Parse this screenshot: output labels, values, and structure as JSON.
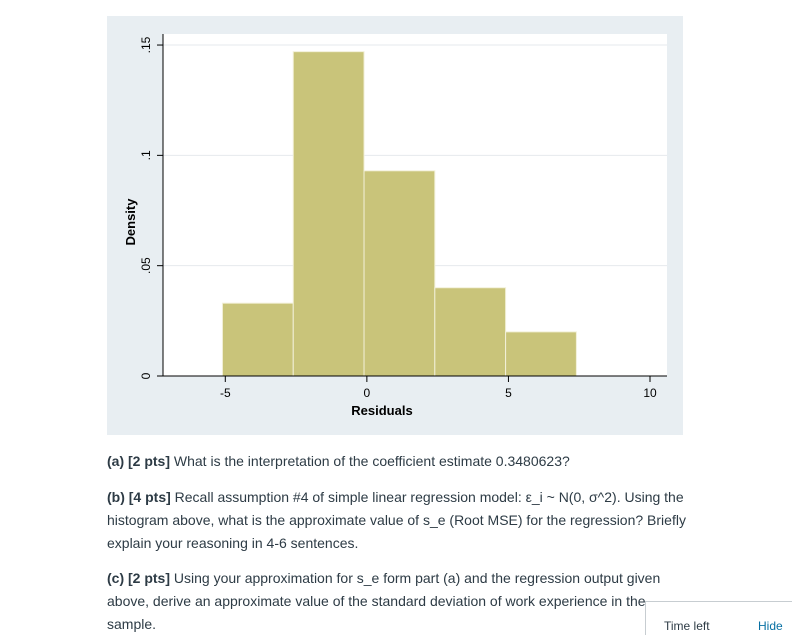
{
  "chart_data": {
    "type": "histogram",
    "xlabel": "Residuals",
    "ylabel": "Density",
    "xlim": [
      -7.2,
      10.6
    ],
    "ylim": [
      0,
      0.155
    ],
    "x_ticks": [
      -5,
      0,
      5,
      10
    ],
    "x_tick_labels": [
      "-5",
      "0",
      "5",
      "10"
    ],
    "y_ticks": [
      0,
      0.05,
      0.1,
      0.15
    ],
    "y_tick_labels": [
      "0",
      ".05",
      ".1",
      ".15"
    ],
    "grid": true,
    "bin_edges": [
      -5.1,
      -2.6,
      -0.1,
      2.4,
      4.9,
      7.4
    ],
    "values": [
      0.033,
      0.147,
      0.093,
      0.04,
      0.02
    ],
    "bar_color": "#c9c47a",
    "bar_edge_color": "#f2f0d8",
    "background_color": "#e8eef2",
    "plot_background_color": "#ffffff"
  },
  "questions": {
    "a": {
      "label": "(a) [2 pts]",
      "text": " What is the interpretation of the coefficient estimate 0.3480623?"
    },
    "b": {
      "label": "(b) [4 pts]",
      "text": " Recall assumption #4 of simple linear regression model: ε_i ~ N(0, σ^2). Using the histogram above, what is the approximate value of s_e (Root MSE) for the regression? Briefly explain your reasoning in 4-6 sentences."
    },
    "c": {
      "label": "(c) [2 pts]",
      "text": " Using your approximation for s_e form part (a) and the regression output given above, derive an approximate value of the standard deviation of work experience in the sample."
    }
  },
  "timer": {
    "label": "Time left",
    "hide_label": "Hide"
  }
}
